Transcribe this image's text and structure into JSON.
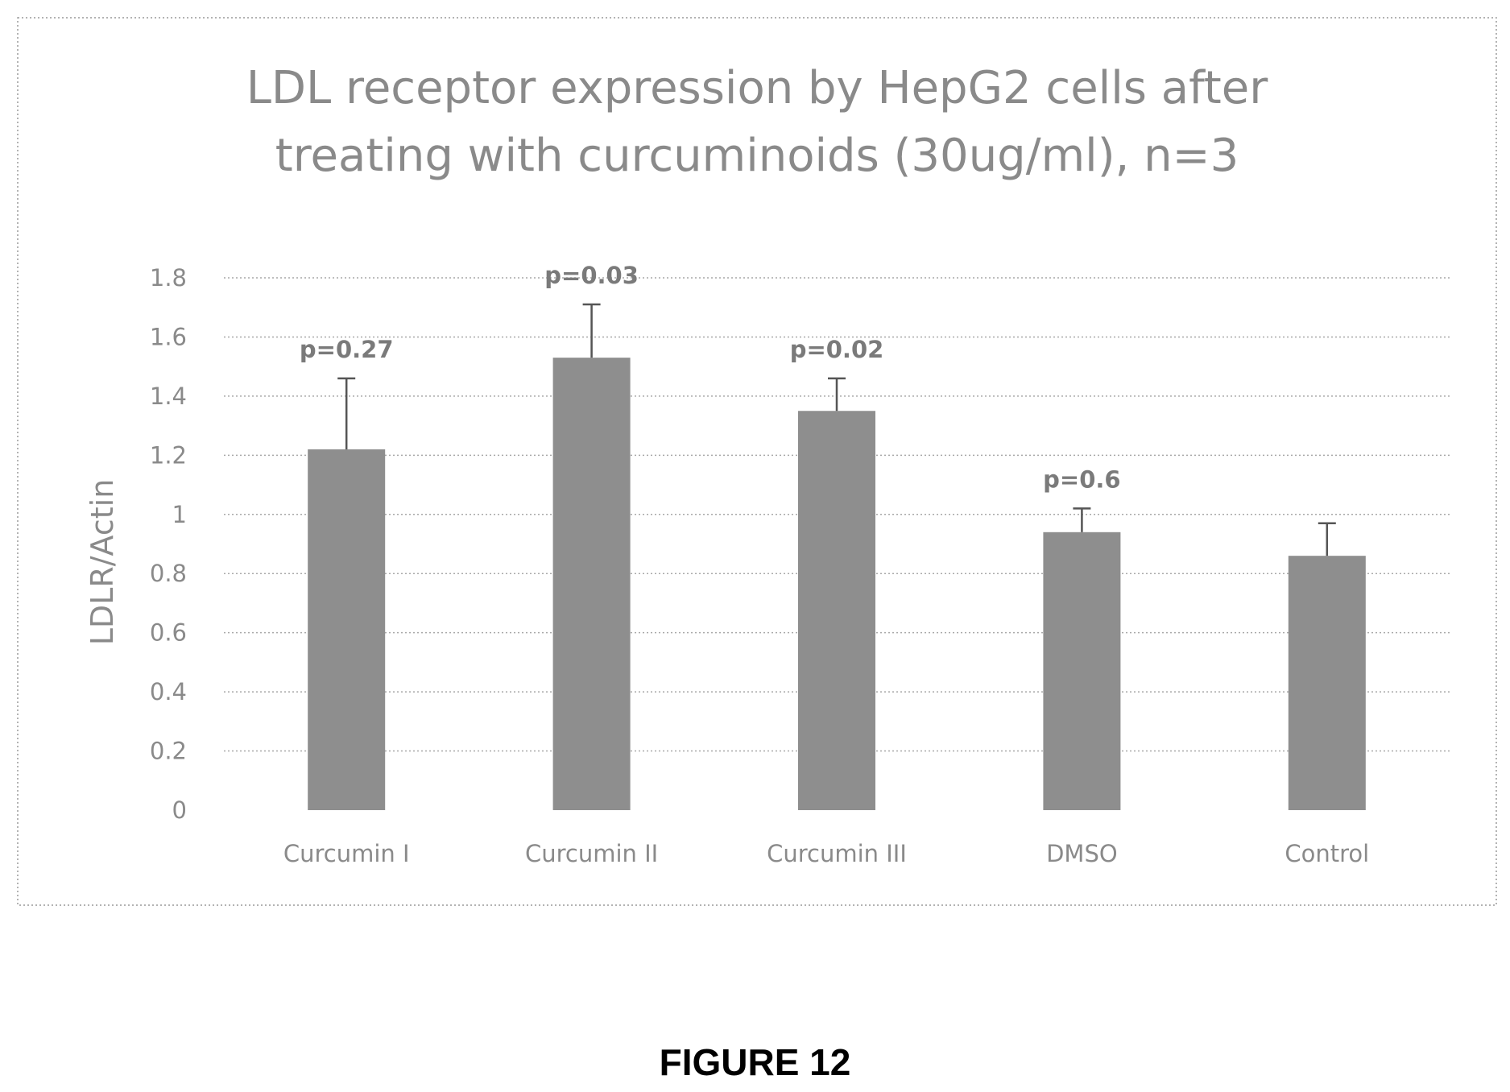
{
  "chart_data": {
    "type": "bar",
    "title_lines": [
      "LDL receptor expression by HepG2 cells after",
      "treating with curcuminoids (30ug/ml), n=3"
    ],
    "xlabel": "",
    "ylabel": "LDLR/Actin",
    "ylim": [
      0,
      1.8
    ],
    "yticks": [
      "0",
      "0.2",
      "0.4",
      "0.6",
      "0.8",
      "1",
      "1.2",
      "1.4",
      "1.6",
      "1.8"
    ],
    "grid": true,
    "categories": [
      "Curcumin I",
      "Curcumin II",
      "Curcumin III",
      "DMSO",
      "Control"
    ],
    "values": [
      1.22,
      1.53,
      1.35,
      0.94,
      0.86
    ],
    "error_upper": [
      0.24,
      0.18,
      0.11,
      0.08,
      0.11
    ],
    "annotations": [
      "p=0.27",
      "p=0.03",
      "p=0.02",
      "p=0.6",
      ""
    ],
    "colors": {
      "bar": "#8e8e8e",
      "error_bar": "#555555",
      "text": "#8a8a8a"
    }
  },
  "caption": "FIGURE 12"
}
